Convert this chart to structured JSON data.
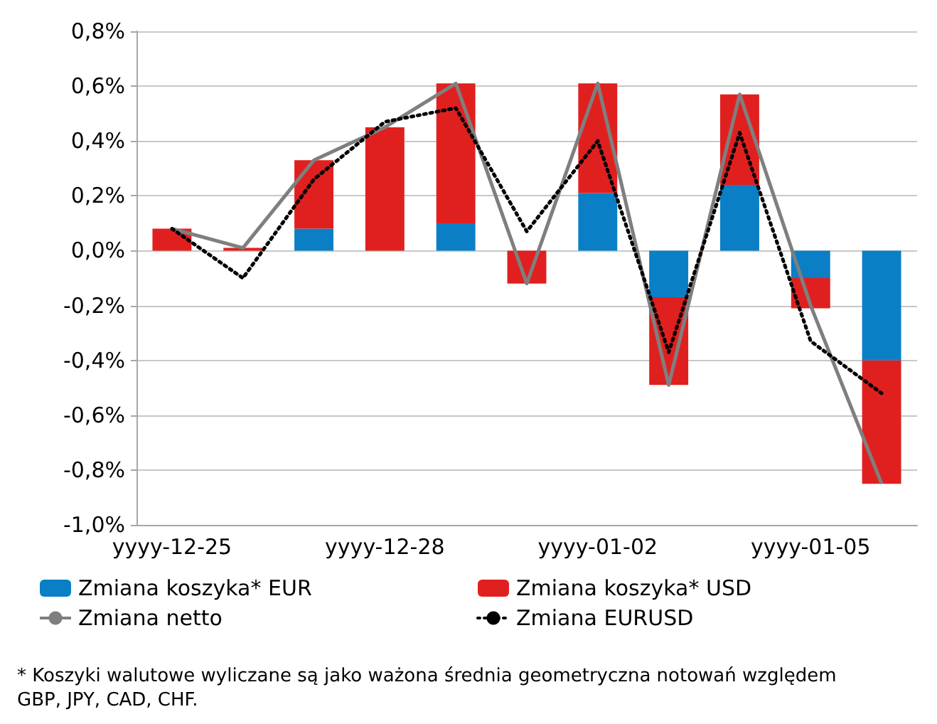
{
  "chart_data": {
    "type": "bar",
    "stacked": true,
    "categories": [
      "yyyy-12-25",
      null,
      null,
      "yyyy-12-28",
      null,
      null,
      "yyyy-01-02",
      null,
      null,
      "yyyy-01-05",
      null
    ],
    "series": [
      {
        "name": "Zmiana koszyka* EUR",
        "color": "#0a7fc6",
        "values": [
          0,
          0,
          0.08,
          0,
          0.1,
          0,
          0.21,
          -0.17,
          0.24,
          -0.1,
          -0.4
        ]
      },
      {
        "name": "Zmiana koszyka* USD",
        "color": "#e0201f",
        "values": [
          0.08,
          0.01,
          0.25,
          0.45,
          0.51,
          -0.12,
          0.4,
          -0.32,
          0.33,
          -0.11,
          -0.45
        ]
      },
      {
        "name": "Zmiana netto",
        "type": "line",
        "color": "#7f7f7f",
        "line_style": "solid",
        "values": [
          0.08,
          0.01,
          0.33,
          0.45,
          0.61,
          -0.12,
          0.61,
          -0.49,
          0.57,
          -0.2,
          -0.85
        ]
      },
      {
        "name": "Zmiana EURUSD",
        "type": "line",
        "color": "#000000",
        "line_style": "dotted",
        "values": [
          0.08,
          -0.1,
          0.26,
          0.47,
          0.52,
          0.07,
          0.4,
          -0.37,
          0.43,
          -0.33,
          -0.52
        ]
      }
    ],
    "ylim": [
      -1.0,
      0.8
    ],
    "yticks": [
      {
        "value": -1.0,
        "label": "-1,0%"
      },
      {
        "value": -0.8,
        "label": "-0,8%"
      },
      {
        "value": -0.6,
        "label": "-0,6%"
      },
      {
        "value": -0.4,
        "label": "-0,4%"
      },
      {
        "value": -0.2,
        "label": "-0,2%"
      },
      {
        "value": 0,
        "label": "0,0%"
      },
      {
        "value": 0.2,
        "label": "0,2%"
      },
      {
        "value": 0.4,
        "label": "0,4%"
      },
      {
        "value": 0.6,
        "label": "0,6%"
      },
      {
        "value": 0.8,
        "label": "0,8%"
      }
    ],
    "grid": "y",
    "marker": "none",
    "legend": "bottom",
    "annotations": [
      "* Koszyki walutowe wyliczane są jako ważona średnia geometryczna notowań względem GBP, JPY, CAD, CHF."
    ]
  }
}
